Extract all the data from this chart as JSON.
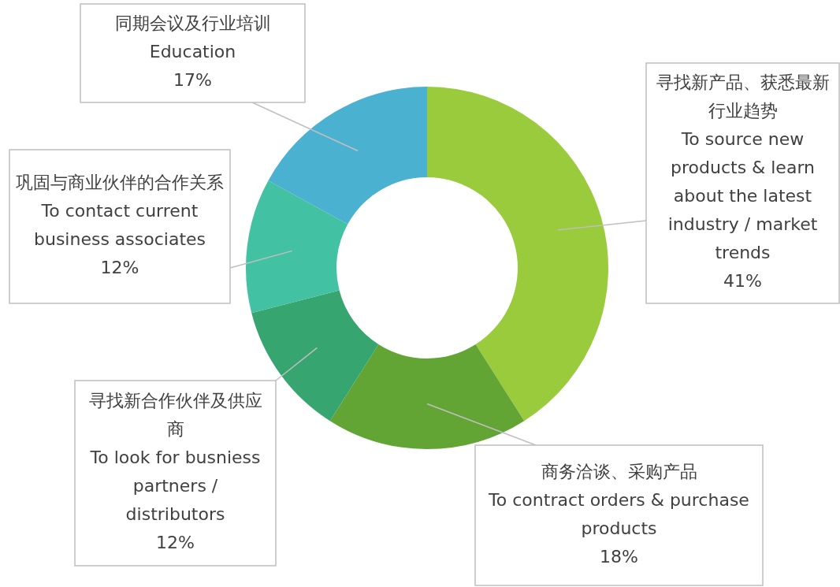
{
  "chart_data": {
    "type": "donut",
    "categories": [
      "寻找新产品、获悉最新行业趋势\nTo source new products & learn about the latest industry / market trends",
      "商务洽谈、采购产品\nTo contract orders & purchase products",
      "寻找新合作伙伴及供应商\nTo look for busniess partners / distributors",
      "巩固与商业伙伴的合作关系\nTo contact current business associates",
      "同期会议及行业培训\nEducation"
    ],
    "values": [
      41,
      18,
      12,
      12,
      17
    ],
    "colors": [
      "#9acb3c",
      "#62a535",
      "#36a56f",
      "#43c1a3",
      "#4bb1d0"
    ],
    "value_labels": [
      "41%",
      "18%",
      "12%",
      "12%",
      "17%"
    ],
    "legend": false
  }
}
